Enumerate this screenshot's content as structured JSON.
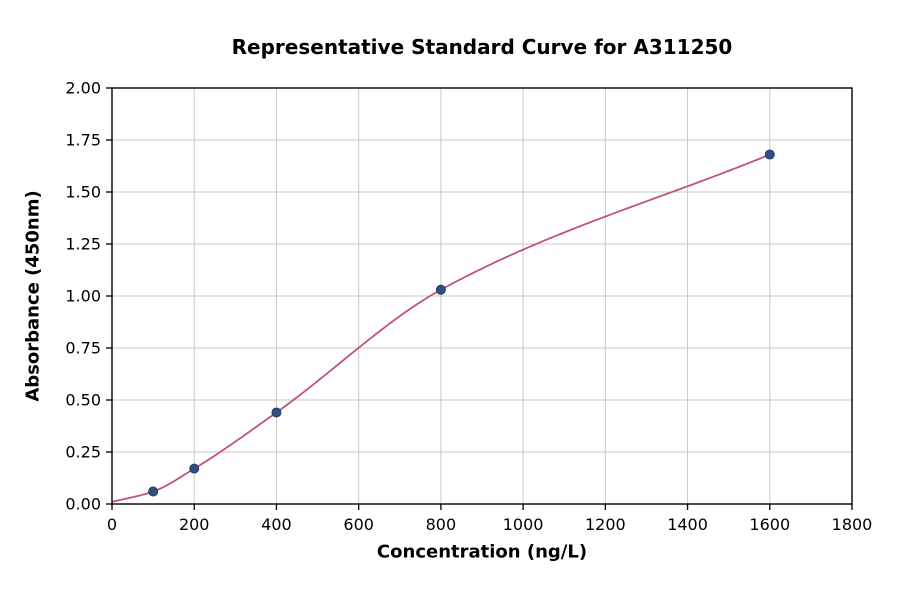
{
  "chart_data": {
    "type": "scatter",
    "title": "Representative Standard Curve for A311250",
    "xlabel": "Concentration (ng/L)",
    "ylabel": "Absorbance (450nm)",
    "xlim": [
      0,
      1800
    ],
    "ylim": [
      0,
      2.0
    ],
    "grid": true,
    "legend": "none",
    "x_ticks": [
      0,
      200,
      400,
      600,
      800,
      1000,
      1200,
      1400,
      1600,
      1800
    ],
    "x_tick_labels": [
      "0",
      "200",
      "400",
      "600",
      "800",
      "1000",
      "1200",
      "1400",
      "1600",
      "1800"
    ],
    "y_ticks": [
      0.0,
      0.25,
      0.5,
      0.75,
      1.0,
      1.25,
      1.5,
      1.75,
      2.0
    ],
    "y_tick_labels": [
      "0.00",
      "0.25",
      "0.50",
      "0.75",
      "1.00",
      "1.25",
      "1.50",
      "1.75",
      "2.00"
    ],
    "points": {
      "x": [
        100,
        200,
        400,
        800,
        1600
      ],
      "y": [
        0.06,
        0.17,
        0.44,
        1.03,
        1.68
      ]
    },
    "fit_curve_knots": {
      "x": [
        0,
        100,
        200,
        400,
        800,
        1600
      ],
      "y": [
        0.01,
        0.06,
        0.17,
        0.44,
        1.03,
        1.68
      ]
    },
    "colors": {
      "point": "#31507f",
      "curve": "#c0527e",
      "grid": "#c9c9c9",
      "axis": "#000000",
      "background": "#ffffff"
    }
  }
}
